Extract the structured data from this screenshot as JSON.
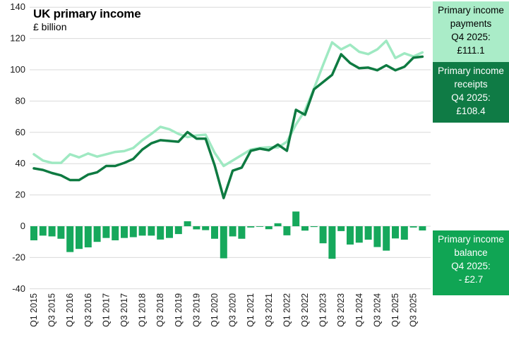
{
  "chart_data": {
    "type": "line+bar combo",
    "title": "UK primary income",
    "subtitle": "£ billion",
    "ylim": [
      -40,
      140
    ],
    "yticks": [
      140,
      120,
      100,
      80,
      60,
      40,
      20,
      0,
      -20,
      -40
    ],
    "grid": "horizontal",
    "legend_position": "right annotation boxes",
    "x": [
      "Q1 2015",
      "Q2 2015",
      "Q3 2015",
      "Q4 2015",
      "Q1 2016",
      "Q2 2016",
      "Q3 2016",
      "Q4 2016",
      "Q1 2017",
      "Q2 2017",
      "Q3 2017",
      "Q4 2017",
      "Q1 2018",
      "Q2 2018",
      "Q3 2018",
      "Q4 2018",
      "Q1 2019",
      "Q2 2019",
      "Q3 2019",
      "Q4 2019",
      "Q1 2020",
      "Q2 2020",
      "Q3 2020",
      "Q4 2020",
      "Q1 2021",
      "Q2 2021",
      "Q3 2021",
      "Q4 2021",
      "Q1 2022",
      "Q2 2022",
      "Q3 2022",
      "Q4 2022",
      "Q1 2023",
      "Q2 2023",
      "Q3 2023",
      "Q4 2023",
      "Q1 2024",
      "Q2 2024",
      "Q3 2024",
      "Q4 2024",
      "Q1 2025",
      "Q2 2025",
      "Q3 2025",
      "Q4 2025"
    ],
    "xtick_labels": [
      "Q1 2015",
      "Q3 2015",
      "Q1 2016",
      "Q3 2016",
      "Q1 2017",
      "Q3 2017",
      "Q1 2018",
      "Q3 2018",
      "Q1 2019",
      "Q3 2019",
      "Q1 2020",
      "Q3 2020",
      "Q1 2021",
      "Q3 2021",
      "Q1 2022",
      "Q3 2022",
      "Q1 2023",
      "Q3 2023",
      "Q1 2024",
      "Q3 2024",
      "Q1 2025",
      "Q3 2025"
    ],
    "series": [
      {
        "name": "Primary income payments",
        "kind": "line",
        "color": "#9fe9c2",
        "values": [
          46,
          42,
          40.5,
          40.5,
          46,
          44,
          46.5,
          44.5,
          46,
          47.5,
          48,
          50,
          55,
          59,
          63.5,
          62,
          59,
          57,
          58,
          58.5,
          47,
          38.5,
          42,
          45.5,
          49,
          50,
          50.5,
          50.3,
          54,
          65,
          74,
          88,
          103,
          117.5,
          113,
          116,
          111.5,
          110,
          113,
          118.5,
          107.5,
          110.5,
          108.5,
          111.1
        ]
      },
      {
        "name": "Primary income receipts",
        "kind": "line",
        "color": "#0e7a41",
        "values": [
          37,
          36,
          34,
          32.5,
          29.5,
          29.5,
          33,
          34.5,
          38.5,
          38.5,
          40.5,
          43,
          49,
          53,
          55,
          54.5,
          54,
          60.2,
          56,
          56,
          39,
          18,
          35.5,
          37.5,
          48.2,
          49.6,
          48.6,
          52.2,
          48.2,
          74.4,
          71.2,
          87.5,
          92.1,
          96.7,
          109.9,
          104.3,
          101,
          101.4,
          99.7,
          102.9,
          99.7,
          101.9,
          107.7,
          108.4
        ]
      },
      {
        "name": "Primary income balance",
        "kind": "bar",
        "color": "#16a85c",
        "values": [
          -9,
          -6,
          -6.5,
          -8,
          -16.5,
          -14.5,
          -13.5,
          -10,
          -7.5,
          -9,
          -7.5,
          -7,
          -6,
          -6,
          -8.5,
          -7.5,
          -5,
          3.2,
          -2,
          -2.5,
          -8,
          -20.5,
          -6.5,
          -8,
          -0.8,
          -0.4,
          -1.9,
          1.9,
          -5.8,
          9.4,
          -2.8,
          -0.5,
          -10.9,
          -20.8,
          -3.1,
          -11.7,
          -10.5,
          -8.6,
          -13.3,
          -15.6,
          -7.8,
          -8.6,
          -0.8,
          -2.7
        ]
      }
    ]
  },
  "annotations": {
    "payments": {
      "text": "Primary income\npayments\nQ4 2025:\n£111.1",
      "bg": "#aaecc8"
    },
    "receipts": {
      "text": "Primary income\nreceipts\nQ4 2025:\n£108.4",
      "bg": "#0f7b45"
    },
    "balance": {
      "text": "Primary income\nbalance\nQ4 2025:\n- £2.7",
      "bg": "#10a554"
    }
  },
  "colors": {
    "grid": "#d9d9d9",
    "axis_text": "#1a1a1a"
  }
}
